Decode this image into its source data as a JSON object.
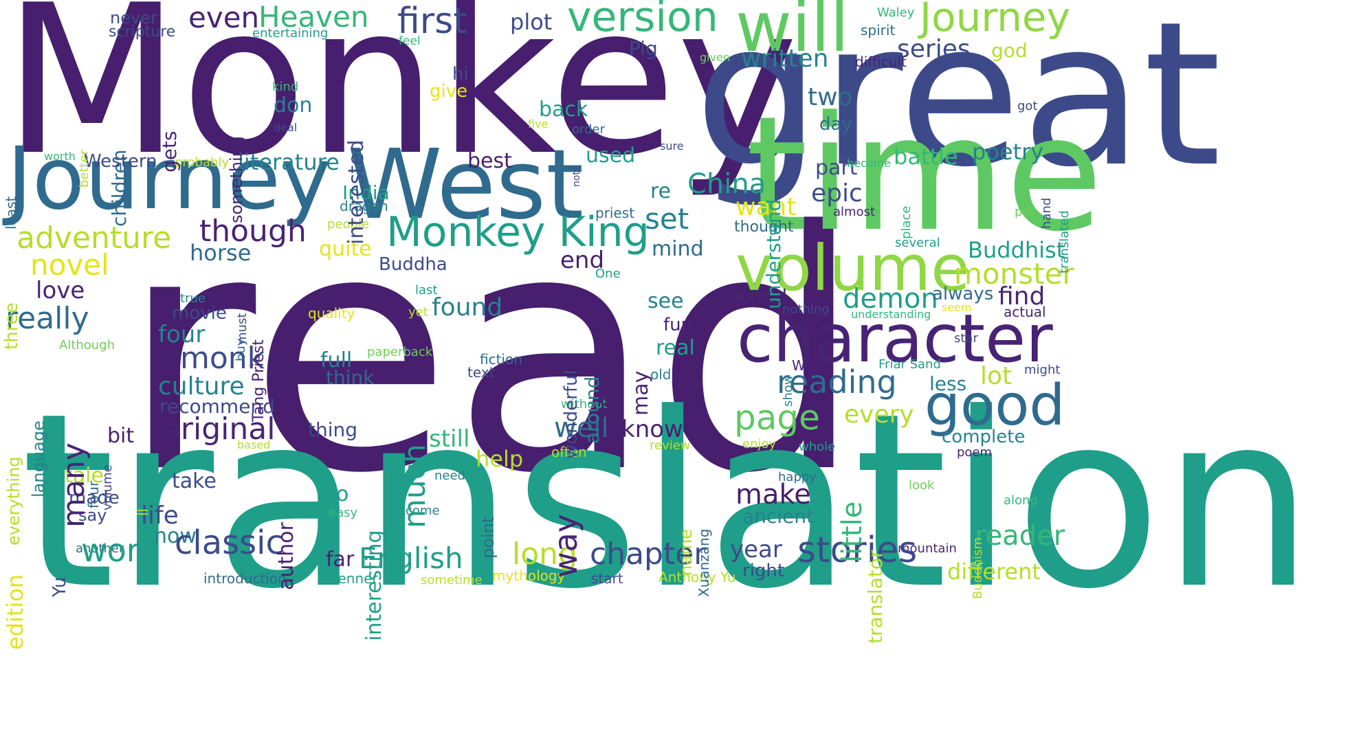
{
  "palette": {
    "purple_dark": "#471f6e",
    "purple": "#482374",
    "indigo": "#3d4a8a",
    "blue": "#2f6b8e",
    "teal": "#26828e",
    "teal_green": "#1f9e89",
    "green": "#35b779",
    "light_green": "#6ece58",
    "lime": "#b5de2b",
    "yellow": "#e4e419"
  },
  "words": [
    {
      "text": "Monkey",
      "color": "#471f6e",
      "icon": "horizontal"
    },
    {
      "text": "great",
      "color": "#3d4a8a",
      "icon": "horizontal"
    },
    {
      "text": "read",
      "color": "#471f6e",
      "icon": "horizontal"
    },
    {
      "text": "translation",
      "color": "#1f9e89",
      "icon": "horizontal"
    },
    {
      "text": "time",
      "color": "#5ec962",
      "icon": "horizontal"
    },
    {
      "text": "Journey",
      "color": "#2f6b8e",
      "icon": "horizontal"
    },
    {
      "text": "West",
      "color": "#2f6b8e",
      "icon": "horizontal"
    },
    {
      "text": "will",
      "color": "#5ec962",
      "icon": "horizontal"
    },
    {
      "text": "volume",
      "color": "#8fd744",
      "icon": "horizontal"
    },
    {
      "text": "character",
      "color": "#482374",
      "icon": "horizontal"
    },
    {
      "text": "good",
      "color": "#2f6b8e",
      "icon": "horizontal"
    },
    {
      "text": "Monkey King",
      "color": "#1f9e89",
      "icon": "horizontal"
    },
    {
      "text": "version",
      "color": "#35b779",
      "icon": "horizontal"
    },
    {
      "text": "Journey",
      "color": "#8fd744",
      "icon": "horizontal"
    },
    {
      "text": "first",
      "color": "#3d4a8a",
      "icon": "horizontal"
    },
    {
      "text": "even",
      "color": "#482374",
      "icon": "horizontal"
    },
    {
      "text": "Heaven",
      "color": "#35b779",
      "icon": "horizontal"
    },
    {
      "text": "plot",
      "color": "#3d4a8a",
      "icon": "horizontal"
    },
    {
      "text": "never",
      "color": "#3d4a8a",
      "icon": "horizontal"
    },
    {
      "text": "scripture",
      "color": "#3d4a8a",
      "icon": "horizontal"
    },
    {
      "text": "entertaining",
      "color": "#1f9e89",
      "icon": "horizontal"
    },
    {
      "text": "feel",
      "color": "#35b779",
      "icon": "horizontal"
    },
    {
      "text": "Waley",
      "color": "#35b779",
      "icon": "horizontal"
    },
    {
      "text": "spirit",
      "color": "#2f6b8e",
      "icon": "horizontal"
    },
    {
      "text": "god",
      "color": "#b5de2b",
      "icon": "horizontal"
    },
    {
      "text": "written",
      "color": "#26828e",
      "icon": "horizontal"
    },
    {
      "text": "series",
      "color": "#3d4a8a",
      "icon": "horizontal"
    },
    {
      "text": "given",
      "color": "#6ece58",
      "icon": "horizontal"
    },
    {
      "text": "difficult",
      "color": "#482374",
      "icon": "horizontal"
    },
    {
      "text": "Pig",
      "color": "#3d4a8a",
      "icon": "horizontal"
    },
    {
      "text": "hi",
      "color": "#3d4a8a",
      "icon": "horizontal"
    },
    {
      "text": "give",
      "color": "#e4e419",
      "icon": "horizontal"
    },
    {
      "text": "kind",
      "color": "#35b779",
      "icon": "horizontal"
    },
    {
      "text": "don",
      "color": "#26828e",
      "icon": "horizontal"
    },
    {
      "text": "deal",
      "color": "#3d4a8a",
      "icon": "horizontal"
    },
    {
      "text": "back",
      "color": "#1f9e89",
      "icon": "horizontal"
    },
    {
      "text": "two",
      "color": "#2f6b8e",
      "icon": "horizontal"
    },
    {
      "text": "day",
      "color": "#2f6b8e",
      "icon": "horizontal"
    },
    {
      "text": "five",
      "color": "#b5de2b",
      "icon": "horizontal"
    },
    {
      "text": "order",
      "color": "#2f6b8e",
      "icon": "horizontal"
    },
    {
      "text": "got",
      "color": "#3d4a8a",
      "icon": "horizontal"
    },
    {
      "text": "sure",
      "color": "#3d4a8a",
      "icon": "horizontal"
    },
    {
      "text": "part",
      "color": "#3d4a8a",
      "icon": "horizontal"
    },
    {
      "text": "battle",
      "color": "#35b779",
      "icon": "horizontal"
    },
    {
      "text": "poetry",
      "color": "#26828e",
      "icon": "horizontal"
    },
    {
      "text": "become",
      "color": "#35b779",
      "icon": "horizontal"
    },
    {
      "text": "worth",
      "color": "#35b779",
      "icon": "horizontal"
    },
    {
      "text": "probably",
      "color": "#b5de2b",
      "icon": "horizontal"
    },
    {
      "text": "Western",
      "color": "#3d4a8a",
      "icon": "horizontal"
    },
    {
      "text": "literature",
      "color": "#26828e",
      "icon": "horizontal"
    },
    {
      "text": "best",
      "color": "#471f6e",
      "icon": "horizontal"
    },
    {
      "text": "used",
      "color": "#1f9e89",
      "icon": "horizontal"
    },
    {
      "text": "re",
      "color": "#26828e",
      "icon": "horizontal"
    },
    {
      "text": "China",
      "color": "#1f9e89",
      "icon": "horizontal"
    },
    {
      "text": "epic",
      "color": "#3d4a8a",
      "icon": "horizontal"
    },
    {
      "text": "want",
      "color": "#e4e419",
      "icon": "horizontal"
    },
    {
      "text": "India",
      "color": "#1f9e89",
      "icon": "horizontal"
    },
    {
      "text": "dragon",
      "color": "#26828e",
      "icon": "horizontal"
    },
    {
      "text": "priest",
      "color": "#2f6b8e",
      "icon": "horizontal"
    },
    {
      "text": "almost",
      "color": "#482374",
      "icon": "horizontal"
    },
    {
      "text": "put",
      "color": "#6ece58",
      "icon": "horizontal"
    },
    {
      "text": "adventure",
      "color": "#b5de2b",
      "icon": "horizontal"
    },
    {
      "text": "though",
      "color": "#482374",
      "icon": "horizontal"
    },
    {
      "text": "set",
      "color": "#26828e",
      "icon": "horizontal"
    },
    {
      "text": "people",
      "color": "#b5de2b",
      "icon": "horizontal"
    },
    {
      "text": "thought",
      "color": "#2f6b8e",
      "icon": "horizontal"
    },
    {
      "text": "several",
      "color": "#1f9e89",
      "icon": "horizontal"
    },
    {
      "text": "novel",
      "color": "#e4e419",
      "icon": "horizontal"
    },
    {
      "text": "horse",
      "color": "#2f6b8e",
      "icon": "horizontal"
    },
    {
      "text": "quite",
      "color": "#e4e419",
      "icon": "horizontal"
    },
    {
      "text": "mind",
      "color": "#2f6b8e",
      "icon": "horizontal"
    },
    {
      "text": "Buddhist",
      "color": "#1f9e89",
      "icon": "horizontal"
    },
    {
      "text": "Buddha",
      "color": "#3d4a8a",
      "icon": "horizontal"
    },
    {
      "text": "end",
      "color": "#471f6e",
      "icon": "horizontal"
    },
    {
      "text": "monster",
      "color": "#b5de2b",
      "icon": "horizontal"
    },
    {
      "text": "One",
      "color": "#1f9e89",
      "icon": "horizontal"
    },
    {
      "text": "love",
      "color": "#482374",
      "icon": "horizontal"
    },
    {
      "text": "last",
      "color": "#1f9e89",
      "icon": "horizontal"
    },
    {
      "text": "demon",
      "color": "#1f9e89",
      "icon": "horizontal"
    },
    {
      "text": "always",
      "color": "#2f6b8e",
      "icon": "horizontal"
    },
    {
      "text": "find",
      "color": "#482374",
      "icon": "horizontal"
    },
    {
      "text": "world",
      "color": "#482374",
      "icon": "horizontal"
    },
    {
      "text": "seem",
      "color": "#e4e419",
      "icon": "horizontal"
    },
    {
      "text": "actual",
      "color": "#482374",
      "icon": "horizontal"
    },
    {
      "text": "really",
      "color": "#2f6b8e",
      "icon": "horizontal"
    },
    {
      "text": "true",
      "color": "#26828e",
      "icon": "horizontal"
    },
    {
      "text": "quality",
      "color": "#e4e419",
      "icon": "horizontal"
    },
    {
      "text": "yet",
      "color": "#b5de2b",
      "icon": "horizontal"
    },
    {
      "text": "found",
      "color": "#26828e",
      "icon": "horizontal"
    },
    {
      "text": "see",
      "color": "#26828e",
      "icon": "horizontal"
    },
    {
      "text": "nothing",
      "color": "#3d4a8a",
      "icon": "horizontal"
    },
    {
      "text": "understanding",
      "color": "#35b779",
      "icon": "horizontal"
    },
    {
      "text": "movie",
      "color": "#3d4a8a",
      "icon": "horizontal"
    },
    {
      "text": "four",
      "color": "#26828e",
      "icon": "horizontal"
    },
    {
      "text": "fun",
      "color": "#482374",
      "icon": "horizontal"
    },
    {
      "text": "star",
      "color": "#3d4a8a",
      "icon": "horizontal"
    },
    {
      "text": "Although",
      "color": "#6ece58",
      "icon": "horizontal"
    },
    {
      "text": "monk",
      "color": "#3d4a8a",
      "icon": "horizontal"
    },
    {
      "text": "paperback",
      "color": "#6ece58",
      "icon": "horizontal"
    },
    {
      "text": "fiction",
      "color": "#2f6b8e",
      "icon": "horizontal"
    },
    {
      "text": "real",
      "color": "#1f9e89",
      "icon": "horizontal"
    },
    {
      "text": "full",
      "color": "#26828e",
      "icon": "horizontal"
    },
    {
      "text": "text",
      "color": "#3d4a8a",
      "icon": "horizontal"
    },
    {
      "text": "old",
      "color": "#26828e",
      "icon": "horizontal"
    },
    {
      "text": "West",
      "color": "#482374",
      "icon": "horizontal"
    },
    {
      "text": "Friar Sand",
      "color": "#1f9e89",
      "icon": "horizontal"
    },
    {
      "text": "might",
      "color": "#3d4a8a",
      "icon": "horizontal"
    },
    {
      "text": "culture",
      "color": "#26828e",
      "icon": "horizontal"
    },
    {
      "text": "think",
      "color": "#2f6b8e",
      "icon": "horizontal"
    },
    {
      "text": "reading",
      "color": "#2f6b8e",
      "icon": "horizontal"
    },
    {
      "text": "lot",
      "color": "#b5de2b",
      "icon": "horizontal"
    },
    {
      "text": "recommend",
      "color": "#3d4a8a",
      "icon": "horizontal"
    },
    {
      "text": "without",
      "color": "#35b779",
      "icon": "horizontal"
    },
    {
      "text": "less",
      "color": "#26828e",
      "icon": "horizontal"
    },
    {
      "text": "every",
      "color": "#b5de2b",
      "icon": "horizontal"
    },
    {
      "text": "page",
      "color": "#5ec962",
      "icon": "horizontal"
    },
    {
      "text": "original",
      "color": "#482374",
      "icon": "horizontal"
    },
    {
      "text": "thing",
      "color": "#3d4a8a",
      "icon": "horizontal"
    },
    {
      "text": "well",
      "color": "#2f6b8e",
      "icon": "horizontal"
    },
    {
      "text": "know",
      "color": "#471f6e",
      "icon": "horizontal"
    },
    {
      "text": "complete",
      "color": "#26828e",
      "icon": "horizontal"
    },
    {
      "text": "bit",
      "color": "#482374",
      "icon": "horizontal"
    },
    {
      "text": "still",
      "color": "#35b779",
      "icon": "horizontal"
    },
    {
      "text": "based",
      "color": "#b5de2b",
      "icon": "horizontal"
    },
    {
      "text": "often",
      "color": "#b5de2b",
      "icon": "horizontal"
    },
    {
      "text": "review",
      "color": "#b5de2b",
      "icon": "horizontal"
    },
    {
      "text": "enjoy",
      "color": "#b5de2b",
      "icon": "horizontal"
    },
    {
      "text": "whole",
      "color": "#1f9e89",
      "icon": "horizontal"
    },
    {
      "text": "poem",
      "color": "#482374",
      "icon": "horizontal"
    },
    {
      "text": "help",
      "color": "#b5de2b",
      "icon": "horizontal"
    },
    {
      "text": "tale",
      "color": "#b5de2b",
      "icon": "horizontal"
    },
    {
      "text": "take",
      "color": "#3d4a8a",
      "icon": "horizontal"
    },
    {
      "text": "need",
      "color": "#26828e",
      "icon": "horizontal"
    },
    {
      "text": "happy",
      "color": "#2f6b8e",
      "icon": "horizontal"
    },
    {
      "text": "make",
      "color": "#471f6e",
      "icon": "horizontal"
    },
    {
      "text": "look",
      "color": "#6ece58",
      "icon": "horizontal"
    },
    {
      "text": "made",
      "color": "#3d4a8a",
      "icon": "horizontal"
    },
    {
      "text": "ancient",
      "color": "#26828e",
      "icon": "horizontal"
    },
    {
      "text": "along",
      "color": "#35b779",
      "icon": "horizontal"
    },
    {
      "text": "life",
      "color": "#3d4a8a",
      "icon": "horizontal"
    },
    {
      "text": "say",
      "color": "#3d4a8a",
      "icon": "horizontal"
    },
    {
      "text": "go",
      "color": "#1f9e89",
      "icon": "horizontal"
    },
    {
      "text": "easy",
      "color": "#35b779",
      "icon": "horizontal"
    },
    {
      "text": "come",
      "color": "#26828e",
      "icon": "horizontal"
    },
    {
      "text": "now",
      "color": "#26828e",
      "icon": "horizontal"
    },
    {
      "text": "another",
      "color": "#2f6b8e",
      "icon": "horizontal"
    },
    {
      "text": "mountain",
      "color": "#482374",
      "icon": "horizontal"
    },
    {
      "text": "work",
      "color": "#1f9e89",
      "icon": "horizontal"
    },
    {
      "text": "classic",
      "color": "#3d4a8a",
      "icon": "horizontal"
    },
    {
      "text": "far",
      "color": "#482374",
      "icon": "horizontal"
    },
    {
      "text": "English",
      "color": "#1f9e89",
      "icon": "horizontal"
    },
    {
      "text": "long",
      "color": "#b5de2b",
      "icon": "horizontal"
    },
    {
      "text": "chapter",
      "color": "#3d4a8a",
      "icon": "horizontal"
    },
    {
      "text": "year",
      "color": "#3d4a8a",
      "icon": "horizontal"
    },
    {
      "text": "right",
      "color": "#3d4a8a",
      "icon": "horizontal"
    },
    {
      "text": "stories",
      "color": "#3d4a8a",
      "icon": "horizontal"
    },
    {
      "text": "reader",
      "color": "#35b779",
      "icon": "horizontal"
    },
    {
      "text": "different",
      "color": "#b5de2b",
      "icon": "horizontal"
    },
    {
      "text": "introduction",
      "color": "#2f6b8e",
      "icon": "horizontal"
    },
    {
      "text": "Brenner",
      "color": "#1f9e89",
      "icon": "horizontal"
    },
    {
      "text": "sometime",
      "color": "#b5de2b",
      "icon": "horizontal"
    },
    {
      "text": "mythology",
      "color": "#e4e419",
      "icon": "horizontal"
    },
    {
      "text": "start",
      "color": "#3d4a8a",
      "icon": "horizontal"
    },
    {
      "text": "Anthony Yu",
      "color": "#b5de2b",
      "icon": "horizontal"
    },
    {
      "text": "something",
      "color": "#482374",
      "icon": "vertical"
    },
    {
      "text": "interested",
      "color": "#3d4a8a",
      "icon": "vertical"
    },
    {
      "text": "children",
      "color": "#2f6b8e",
      "icon": "vertical"
    },
    {
      "text": "gets",
      "color": "#482374",
      "icon": "vertical"
    },
    {
      "text": "better",
      "color": "#b5de2b",
      "icon": "vertical"
    },
    {
      "text": "understand",
      "color": "#1f9e89",
      "icon": "vertical"
    },
    {
      "text": "translated",
      "color": "#1f9e89",
      "icon": "vertical"
    },
    {
      "text": "hand",
      "color": "#3d4a8a",
      "icon": "vertical"
    },
    {
      "text": "place",
      "color": "#35b779",
      "icon": "vertical"
    },
    {
      "text": "note",
      "color": "#3d4a8a",
      "icon": "vertical"
    },
    {
      "text": "least",
      "color": "#2f6b8e",
      "icon": "vertical"
    },
    {
      "text": "three",
      "color": "#b5de2b",
      "icon": "vertical"
    },
    {
      "text": "many",
      "color": "#482374",
      "icon": "vertical"
    },
    {
      "text": "much",
      "color": "#1f9e89",
      "icon": "vertical"
    },
    {
      "text": "wonderful",
      "color": "#3d4a8a",
      "icon": "vertical"
    },
    {
      "text": "around",
      "color": "#26828e",
      "icon": "vertical"
    },
    {
      "text": "ve",
      "color": "#482374",
      "icon": "vertical"
    },
    {
      "text": "may",
      "color": "#482374",
      "icon": "vertical"
    },
    {
      "text": "Tang Priest",
      "color": "#482374",
      "icon": "vertical"
    },
    {
      "text": "must",
      "color": "#3d4a8a",
      "icon": "vertical"
    },
    {
      "text": "buy",
      "color": "#2f6b8e",
      "icon": "vertical"
    },
    {
      "text": "show",
      "color": "#26828e",
      "icon": "vertical"
    },
    {
      "text": "everything",
      "color": "#b5de2b",
      "icon": "vertical"
    },
    {
      "text": "language",
      "color": "#26828e",
      "icon": "vertical"
    },
    {
      "text": "volume",
      "color": "#3d4a8a",
      "icon": "vertical"
    },
    {
      "text": "four",
      "color": "#2f6b8e",
      "icon": "vertical"
    },
    {
      "text": "interesting",
      "color": "#1f9e89",
      "icon": "vertical"
    },
    {
      "text": "author",
      "color": "#482374",
      "icon": "vertical"
    },
    {
      "text": "way",
      "color": "#482374",
      "icon": "vertical"
    },
    {
      "text": "point",
      "color": "#2f6b8e",
      "icon": "vertical"
    },
    {
      "text": "name",
      "color": "#b5de2b",
      "icon": "vertical"
    },
    {
      "text": "Xuanzang",
      "color": "#2f6b8e",
      "icon": "vertical"
    },
    {
      "text": "little",
      "color": "#35b779",
      "icon": "vertical"
    },
    {
      "text": "translator",
      "color": "#b5de2b",
      "icon": "vertical"
    },
    {
      "text": "Buddhism",
      "color": "#b5de2b",
      "icon": "vertical"
    },
    {
      "text": "edition",
      "color": "#e4e419",
      "icon": "vertical"
    },
    {
      "text": "Yu",
      "color": "#3d4a8a",
      "icon": "vertical"
    },
    {
      "text": "ll",
      "color": "#b5de2b",
      "icon": "vertical"
    }
  ]
}
